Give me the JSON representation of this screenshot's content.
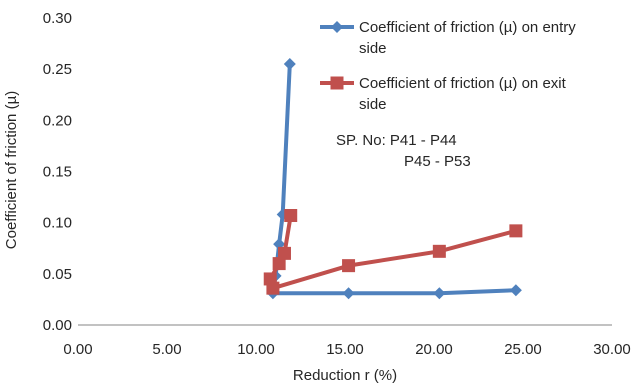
{
  "chart_data": {
    "type": "line",
    "title": "",
    "xlabel": "Reduction r (%)",
    "ylabel": "Coefficient of friction (µ)",
    "xlim": [
      0,
      30
    ],
    "ylim": [
      0,
      0.3
    ],
    "xticks": [
      "0.00",
      "5.00",
      "10.00",
      "15.00",
      "20.00",
      "25.00",
      "30.00"
    ],
    "yticks": [
      "0.00",
      "0.05",
      "0.10",
      "0.15",
      "0.20",
      "0.25",
      "0.30"
    ],
    "grid": false,
    "legend_position": "top-right",
    "series": [
      {
        "name": "Coefficient of friction (µ) on entry side",
        "legend_lines": [
          "Coefficient of friction (µ) on entry",
          "side"
        ],
        "color": "#4F81BD",
        "marker": "diamond",
        "x": [
          24.6,
          20.3,
          15.2,
          10.95,
          11.1,
          11.3,
          11.5,
          11.9
        ],
        "y": [
          0.034,
          0.031,
          0.031,
          0.031,
          0.048,
          0.079,
          0.108,
          0.255
        ]
      },
      {
        "name": "Coefficient of friction (µ) on exit side",
        "legend_lines": [
          "Coefficient of friction (µ) on exit",
          "side"
        ],
        "color": "#C0504D",
        "marker": "square",
        "x": [
          24.6,
          20.3,
          15.2,
          10.95,
          10.8,
          11.3,
          11.6,
          11.95
        ],
        "y": [
          0.092,
          0.072,
          0.058,
          0.036,
          0.045,
          0.06,
          0.07,
          0.107
        ]
      }
    ],
    "annotations": [
      "SP. No: P41 - P44",
      "P45 - P53"
    ]
  }
}
